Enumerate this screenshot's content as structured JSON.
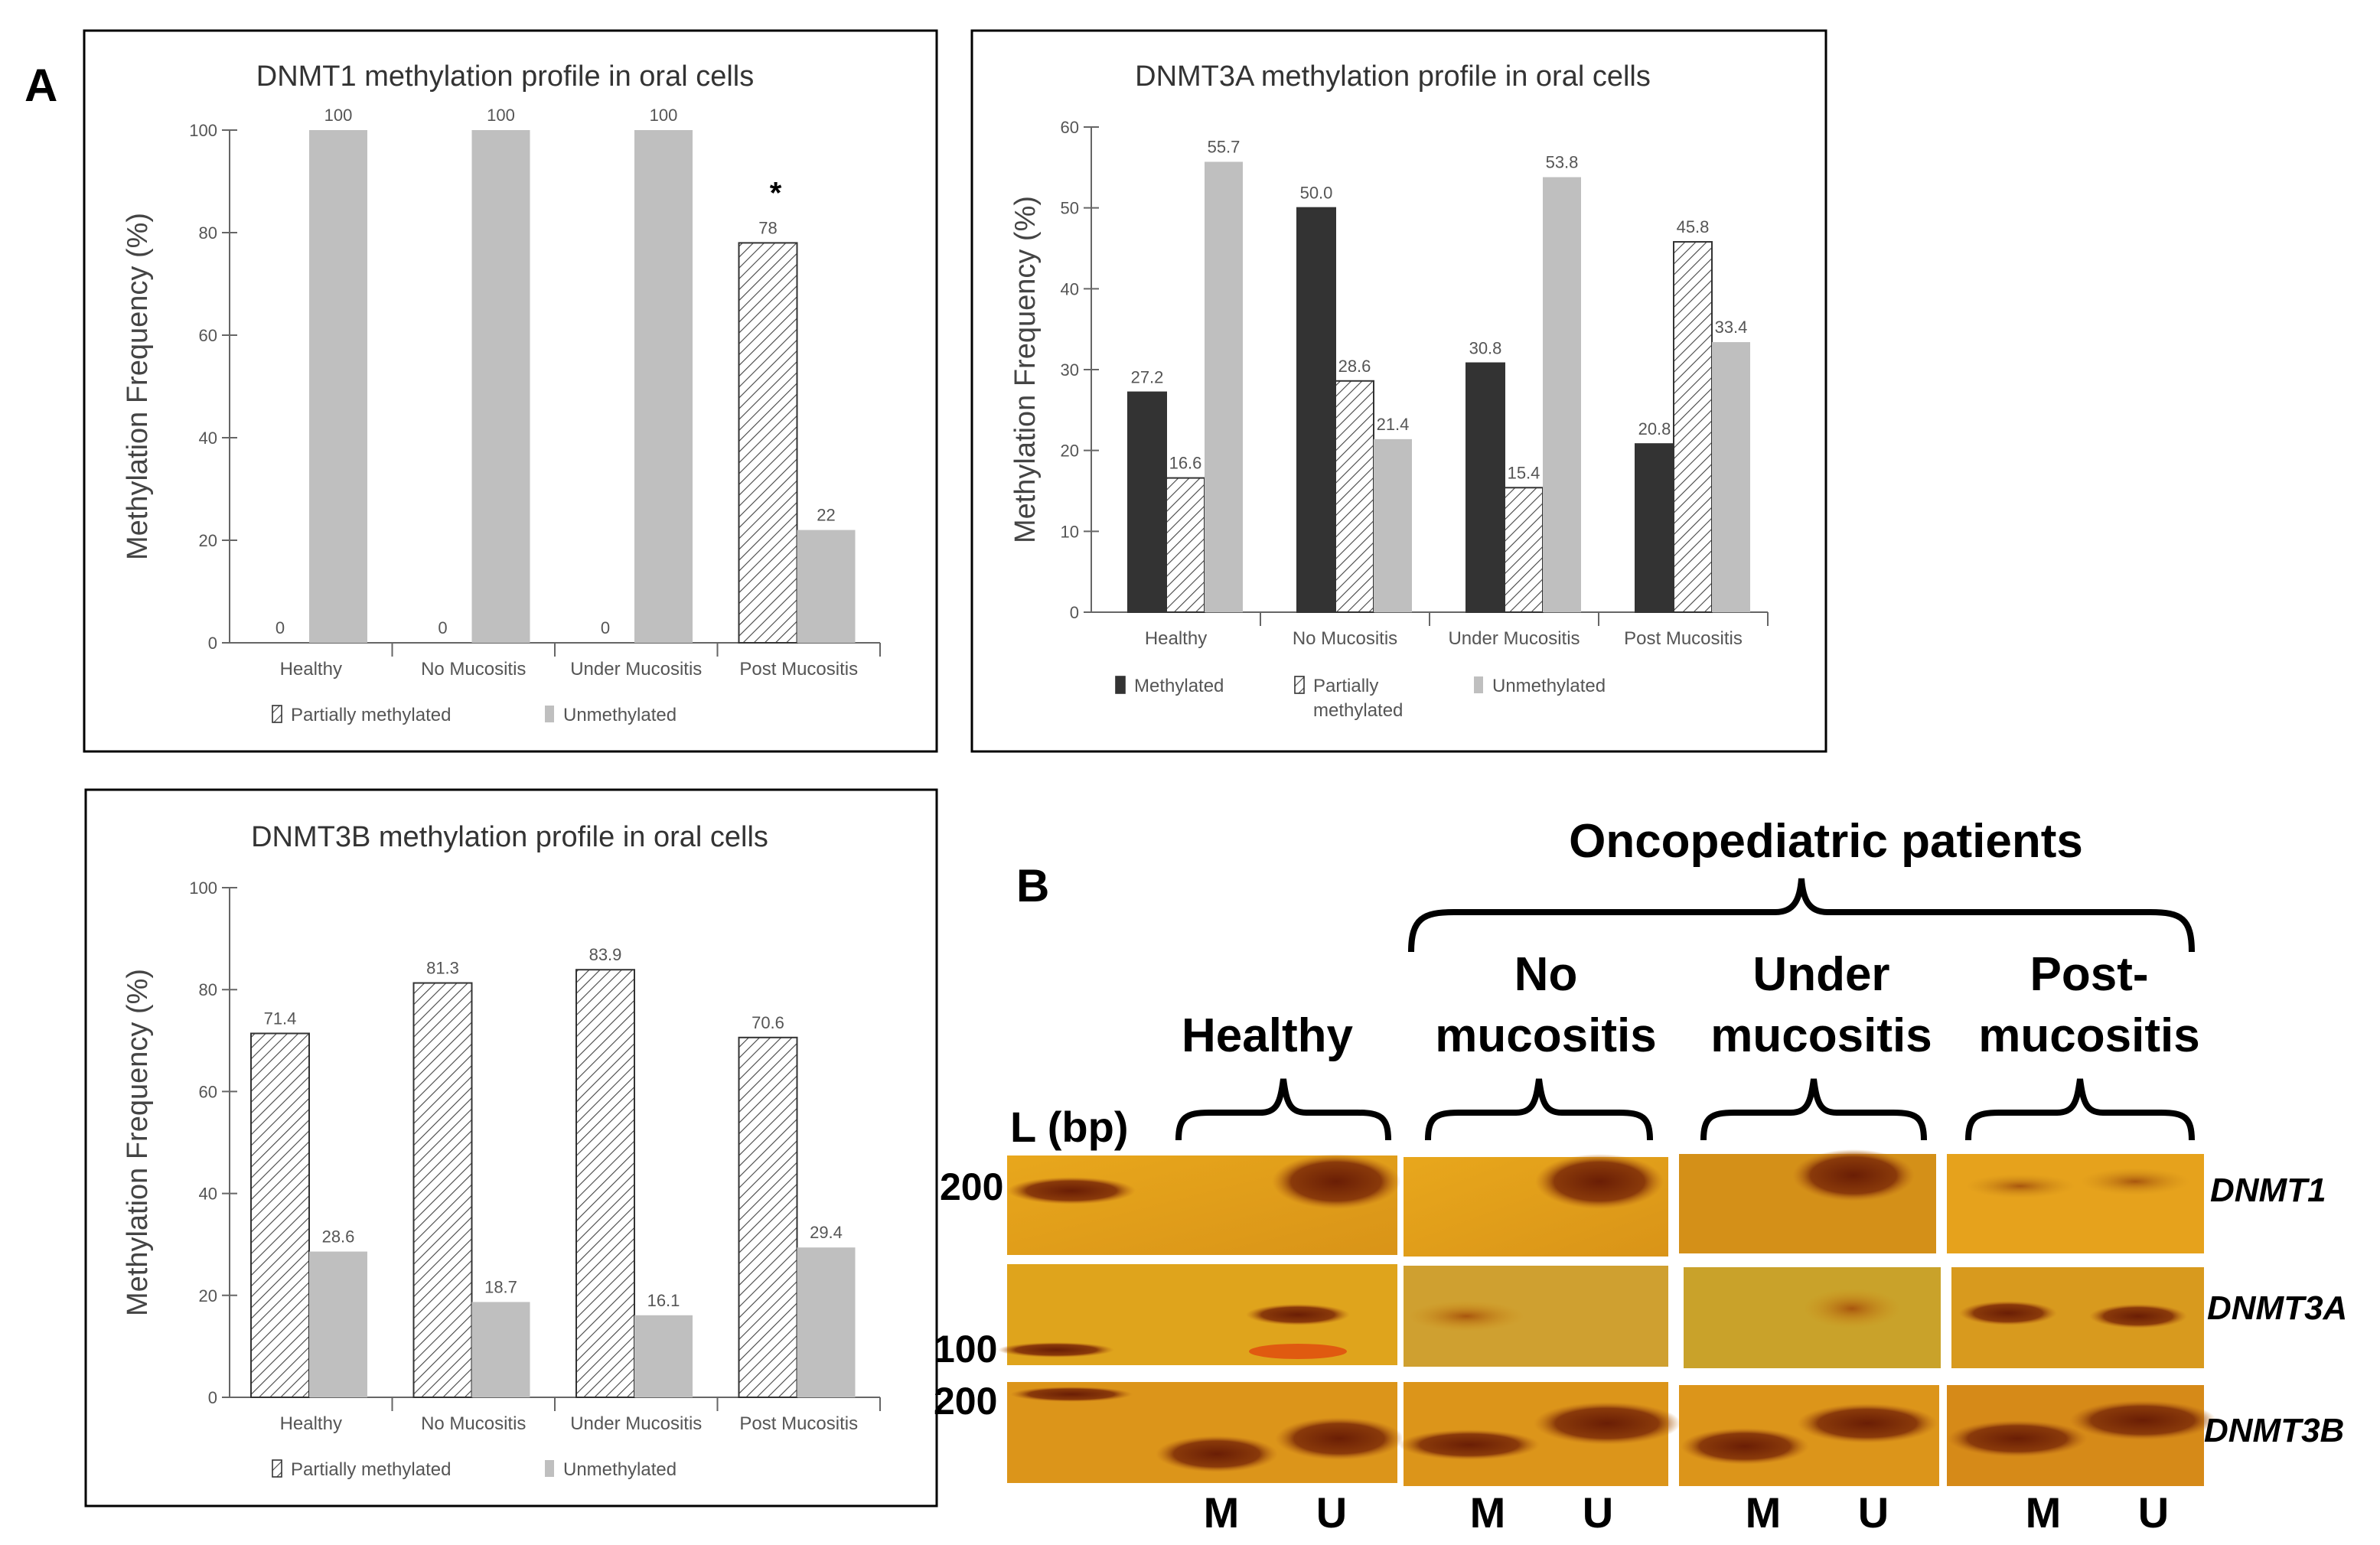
{
  "panel_labels": {
    "a": "A",
    "b": "B"
  },
  "colors": {
    "methylated": "#333333",
    "partial": "#ffffff",
    "unmethylated": "#bfbfbf",
    "axis": "#666666",
    "gel": "#e0a020",
    "band": "#7a2a08"
  },
  "chart_data": [
    {
      "type": "bar",
      "title": "DNMT1 methylation profile in oral cells",
      "xlabel": "",
      "ylabel": "Methylation Frequency (%)",
      "ylim": [
        0,
        100
      ],
      "yticks": [
        0,
        20,
        40,
        60,
        80,
        100
      ],
      "grid": false,
      "legend": "bottom",
      "categories": [
        "Healthy",
        "No Mucositis",
        "Under Mucositis",
        "Post Mucositis"
      ],
      "series": [
        {
          "name": "Partially methylated",
          "style": "partial",
          "values": [
            0,
            0,
            0,
            78
          ],
          "labels": [
            "0",
            "0",
            "0",
            "78"
          ]
        },
        {
          "name": "Unmethylated",
          "style": "unmethylated",
          "values": [
            100,
            100,
            100,
            22
          ],
          "labels": [
            "100",
            "100",
            "100",
            "22"
          ]
        }
      ],
      "annotations": [
        {
          "text": "*",
          "category": "Post Mucositis"
        }
      ]
    },
    {
      "type": "bar",
      "title": "DNMT3A methylation profile in oral cells",
      "xlabel": "",
      "ylabel": "Methylation Frequency (%)",
      "ylim": [
        0,
        60
      ],
      "yticks": [
        0,
        10,
        20,
        30,
        40,
        50,
        60
      ],
      "grid": false,
      "legend": "bottom",
      "categories": [
        "Healthy",
        "No Mucositis",
        "Under Mucositis",
        "Post Mucositis"
      ],
      "series": [
        {
          "name": "Methylated",
          "style": "methylated",
          "values": [
            27.2,
            50.0,
            30.8,
            20.8
          ],
          "labels": [
            "27.2",
            "50.0",
            "30.8",
            "20.8"
          ]
        },
        {
          "name": "Partially methylated",
          "style": "partial",
          "values": [
            16.6,
            28.6,
            15.4,
            45.8
          ],
          "labels": [
            "16.6",
            "28.6",
            "15.4",
            "45.8"
          ]
        },
        {
          "name": "Unmethylated",
          "style": "unmethylated",
          "values": [
            55.7,
            21.4,
            53.8,
            33.4
          ],
          "labels": [
            "55.7",
            "21.4",
            "53.8",
            "33.4"
          ]
        }
      ],
      "annotations": []
    },
    {
      "type": "bar",
      "title": "DNMT3B methylation profile in oral cells",
      "xlabel": "",
      "ylabel": "Methylation Frequency (%)",
      "ylim": [
        0,
        100
      ],
      "yticks": [
        0,
        20,
        40,
        60,
        80,
        100
      ],
      "grid": false,
      "legend": "bottom",
      "categories": [
        "Healthy",
        "No Mucositis",
        "Under Mucositis",
        "Post Mucositis"
      ],
      "series": [
        {
          "name": "Partially methylated",
          "style": "partial",
          "values": [
            71.4,
            81.3,
            83.9,
            70.6
          ],
          "labels": [
            "71.4",
            "81.3",
            "83.9",
            "70.6"
          ]
        },
        {
          "name": "Unmethylated",
          "style": "unmethylated",
          "values": [
            28.6,
            18.7,
            16.1,
            29.4
          ],
          "labels": [
            "28.6",
            "18.7",
            "16.1",
            "29.4"
          ]
        }
      ],
      "annotations": []
    }
  ],
  "gel": {
    "title": "Oncopediatric patients",
    "ladder_label": "L (bp)",
    "groups": [
      {
        "lines": [
          "Healthy"
        ]
      },
      {
        "lines": [
          "No",
          "mucositis"
        ]
      },
      {
        "lines": [
          "Under",
          "mucositis"
        ]
      },
      {
        "lines": [
          "Post-",
          "mucositis"
        ]
      }
    ],
    "genes": [
      "DNMT1",
      "DNMT3A",
      "DNMT3B"
    ],
    "size_markers": [
      "200",
      "100",
      "200"
    ],
    "lanes": [
      "M",
      "U"
    ]
  }
}
